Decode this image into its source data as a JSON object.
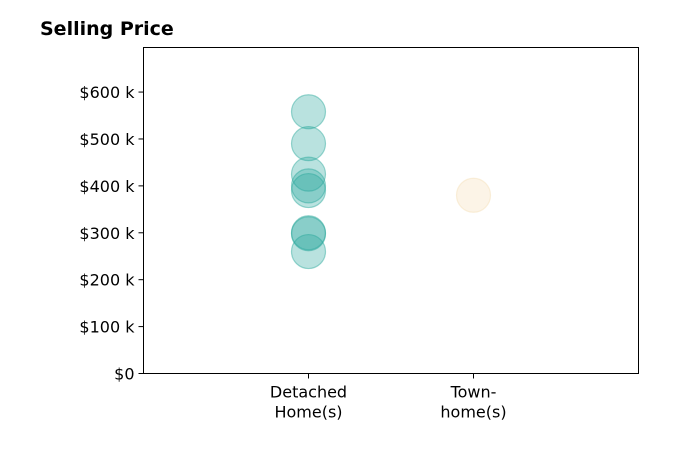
{
  "chart_data": {
    "type": "scatter",
    "title": "Selling Price",
    "categories": [
      "Detached Home(s)",
      "Town-home(s)"
    ],
    "category_label_lines": [
      [
        "Detached",
        "Home(s)"
      ],
      [
        "Town-",
        "home(s)"
      ]
    ],
    "x_range": [
      0,
      3
    ],
    "ylim": [
      0,
      695000
    ],
    "yticks": [
      0,
      100000,
      200000,
      300000,
      400000,
      500000,
      600000
    ],
    "ytick_labels": [
      "$0",
      "$100 k",
      "$200 k",
      "$300 k",
      "$400 k",
      "$500 k",
      "$600 k"
    ],
    "xlabel": "",
    "ylabel": "",
    "grid": false,
    "series": [
      {
        "category": "Detached Home(s)",
        "x": 1,
        "color": "#26a69a",
        "values": [
          558000,
          490000,
          425000,
          400000,
          390000,
          300000,
          298000,
          260000
        ]
      },
      {
        "category": "Town-home(s)",
        "x": 2,
        "color": "#f5deb3",
        "values": [
          380000
        ]
      }
    ]
  }
}
